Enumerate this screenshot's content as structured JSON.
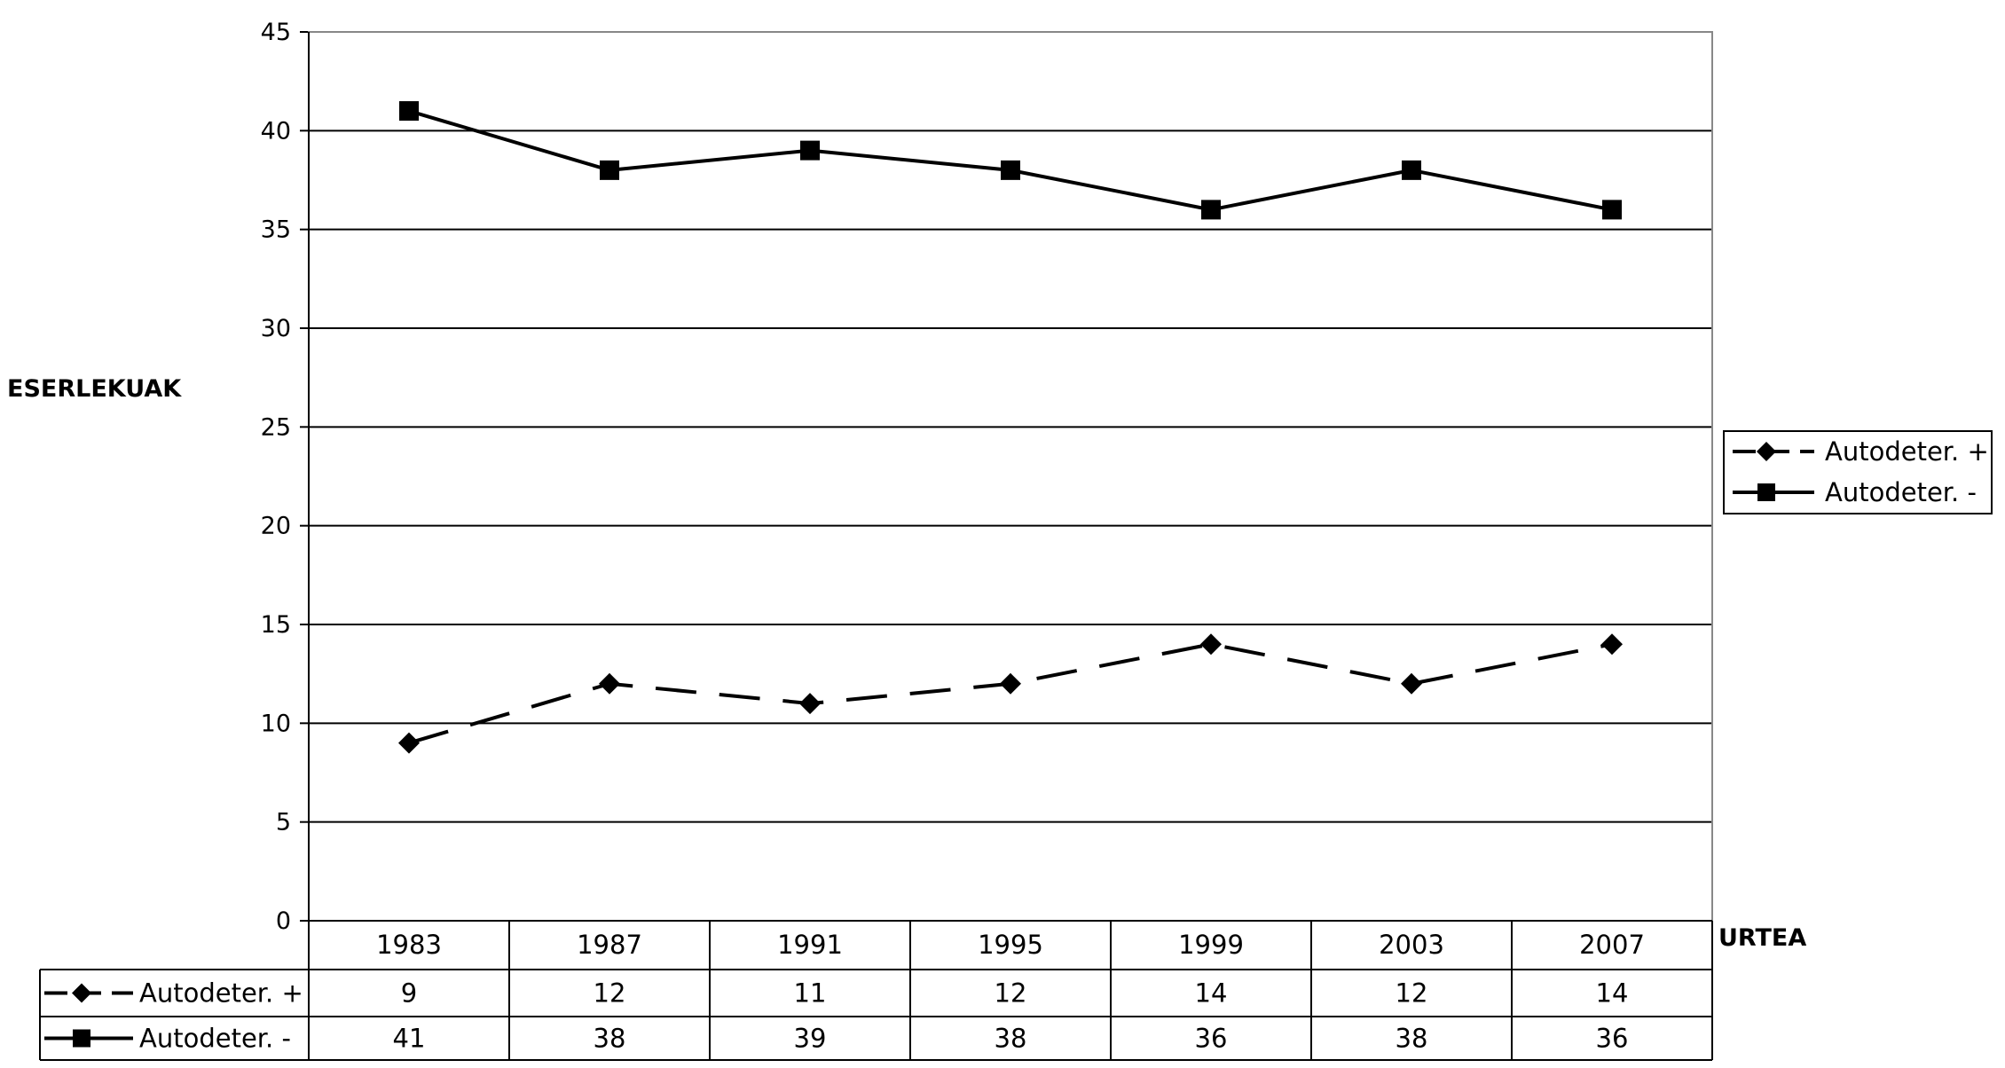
{
  "chart_data": {
    "type": "line",
    "title": "",
    "xlabel": "URTEA",
    "ylabel": "ESERLEKUAK",
    "ylim": [
      0,
      45
    ],
    "yticks": [
      0,
      5,
      10,
      15,
      20,
      25,
      30,
      35,
      40,
      45
    ],
    "grid": true,
    "legend_position": "right",
    "categories": [
      "1983",
      "1987",
      "1991",
      "1995",
      "1999",
      "2003",
      "2007"
    ],
    "series": [
      {
        "name": "Autodeter. +",
        "values": [
          9,
          12,
          11,
          12,
          14,
          12,
          14
        ],
        "line_style": "dashed",
        "marker": "diamond",
        "color": "#000000"
      },
      {
        "name": "Autodeter. -",
        "values": [
          41,
          38,
          39,
          38,
          36,
          38,
          36
        ],
        "line_style": "solid",
        "marker": "square",
        "color": "#000000"
      }
    ],
    "data_table": true
  }
}
